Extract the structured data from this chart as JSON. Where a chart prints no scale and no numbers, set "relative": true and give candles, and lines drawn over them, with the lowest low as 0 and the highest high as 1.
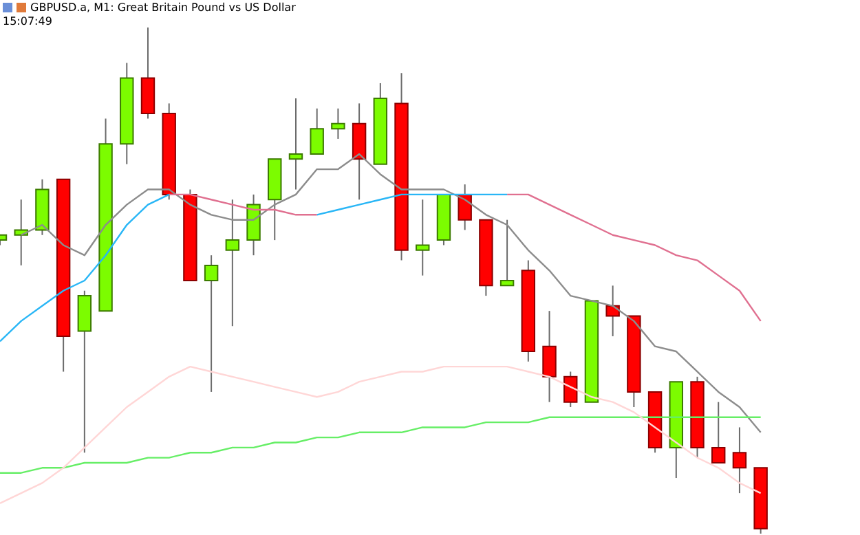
{
  "chart_data": {
    "type": "candlestick",
    "title": "GBPUSD.a, M1: Great Britain Pound vs US Dollar",
    "subtitle": "15:07:49",
    "relative": true,
    "legend": false,
    "tick_labels": false,
    "categories": [
      null,
      null,
      null,
      null,
      null,
      null,
      null,
      null,
      null,
      null,
      null,
      null,
      null,
      null,
      null,
      null,
      null,
      null,
      null,
      null,
      null,
      null,
      null,
      null,
      null,
      null,
      null,
      null,
      null,
      null,
      null,
      null,
      null,
      null,
      null,
      null,
      null
    ],
    "ohlc": [
      [
        0.58,
        0.59,
        0.57,
        0.59
      ],
      [
        0.59,
        0.66,
        0.53,
        0.6
      ],
      [
        0.6,
        0.7,
        0.59,
        0.68
      ],
      [
        0.7,
        0.7,
        0.32,
        0.39
      ],
      [
        0.4,
        0.48,
        0.16,
        0.47
      ],
      [
        0.44,
        0.82,
        0.44,
        0.77
      ],
      [
        0.77,
        0.93,
        0.73,
        0.9
      ],
      [
        0.9,
        1,
        0.82,
        0.83
      ],
      [
        0.83,
        0.85,
        0.66,
        0.67
      ],
      [
        0.67,
        0.68,
        0.5,
        0.5
      ],
      [
        0.5,
        0.55,
        0.28,
        0.53
      ],
      [
        0.56,
        0.66,
        0.41,
        0.58
      ],
      [
        0.58,
        0.67,
        0.55,
        0.65
      ],
      [
        0.66,
        0.74,
        0.58,
        0.74
      ],
      [
        0.74,
        0.86,
        0.68,
        0.75
      ],
      [
        0.75,
        0.84,
        0.75,
        0.8
      ],
      [
        0.8,
        0.84,
        0.78,
        0.81
      ],
      [
        0.81,
        0.85,
        0.66,
        0.74
      ],
      [
        0.73,
        0.89,
        0.73,
        0.86
      ],
      [
        0.85,
        0.91,
        0.54,
        0.56
      ],
      [
        0.56,
        0.66,
        0.51,
        0.57
      ],
      [
        0.58,
        0.67,
        0.57,
        0.67
      ],
      [
        0.67,
        0.69,
        0.6,
        0.62
      ],
      [
        0.62,
        0.62,
        0.47,
        0.49
      ],
      [
        0.49,
        0.62,
        0.49,
        0.5
      ],
      [
        0.52,
        0.54,
        0.34,
        0.36
      ],
      [
        0.37,
        0.44,
        0.26,
        0.31
      ],
      [
        0.31,
        0.32,
        0.25,
        0.26
      ],
      [
        0.26,
        0.46,
        0.26,
        0.46
      ],
      [
        0.45,
        0.49,
        0.39,
        0.43
      ],
      [
        0.43,
        0.43,
        0.25,
        0.28
      ],
      [
        0.28,
        0.28,
        0.16,
        0.17
      ],
      [
        0.17,
        0.3,
        0.11,
        0.3
      ],
      [
        0.3,
        0.31,
        0.15,
        0.17
      ],
      [
        0.17,
        0.26,
        0.14,
        0.14
      ],
      [
        0.16,
        0.21,
        0.08,
        0.13
      ],
      [
        0.13,
        0.13,
        0,
        0.01
      ]
    ],
    "series": [
      {
        "type": "line",
        "color": "#ffd6d6",
        "values": [
          0.06,
          0.08,
          0.1,
          0.13,
          0.17,
          0.21,
          0.25,
          0.28,
          0.31,
          0.33,
          0.32,
          0.31,
          0.3,
          0.29,
          0.28,
          0.27,
          0.28,
          0.3,
          0.31,
          0.32,
          0.32,
          0.33,
          0.33,
          0.33,
          0.33,
          0.32,
          0.31,
          0.29,
          0.27,
          0.26,
          0.24,
          0.21,
          0.18,
          0.15,
          0.13,
          0.1,
          0.08
        ]
      },
      {
        "type": "line",
        "color": "#66ee66",
        "values": [
          0.12,
          0.12,
          0.13,
          0.13,
          0.14,
          0.14,
          0.14,
          0.15,
          0.15,
          0.16,
          0.16,
          0.17,
          0.17,
          0.18,
          0.18,
          0.19,
          0.19,
          0.2,
          0.2,
          0.2,
          0.21,
          0.21,
          0.21,
          0.22,
          0.22,
          0.22,
          0.23,
          0.23,
          0.23,
          0.23,
          0.23,
          0.23,
          0.23,
          0.23,
          0.23,
          0.23,
          0.23
        ]
      },
      {
        "type": "line",
        "color": "#29b6f6",
        "values": [
          0.38,
          0.42,
          0.45,
          0.48,
          0.5,
          0.55,
          0.61,
          0.65,
          0.67,
          null,
          null,
          null,
          null,
          null,
          null,
          0.63,
          0.64,
          0.65,
          0.66,
          0.67,
          0.67,
          0.67,
          0.67,
          0.67,
          0.67,
          null,
          null,
          null,
          null,
          null,
          null,
          null,
          null,
          null,
          null,
          null,
          null
        ]
      },
      {
        "type": "line",
        "color": "#e07090",
        "values": [
          null,
          null,
          null,
          null,
          null,
          null,
          null,
          null,
          0.67,
          0.67,
          0.66,
          0.65,
          0.64,
          0.64,
          0.63,
          0.63,
          null,
          null,
          null,
          null,
          null,
          null,
          null,
          null,
          0.67,
          0.67,
          0.65,
          0.63,
          0.61,
          0.59,
          0.58,
          0.57,
          0.55,
          0.54,
          0.51,
          0.48,
          0.42
        ]
      },
      {
        "type": "line",
        "color": "#8c8c8c",
        "values": [
          null,
          0.59,
          0.61,
          0.57,
          0.55,
          0.61,
          0.65,
          0.68,
          0.68,
          0.65,
          0.63,
          0.62,
          0.62,
          0.65,
          0.67,
          0.72,
          0.72,
          0.75,
          0.71,
          0.68,
          0.68,
          0.68,
          0.66,
          0.63,
          0.61,
          0.56,
          0.52,
          0.47,
          0.46,
          0.45,
          0.42,
          0.37,
          0.36,
          0.32,
          0.28,
          0.25,
          0.2
        ]
      }
    ]
  }
}
